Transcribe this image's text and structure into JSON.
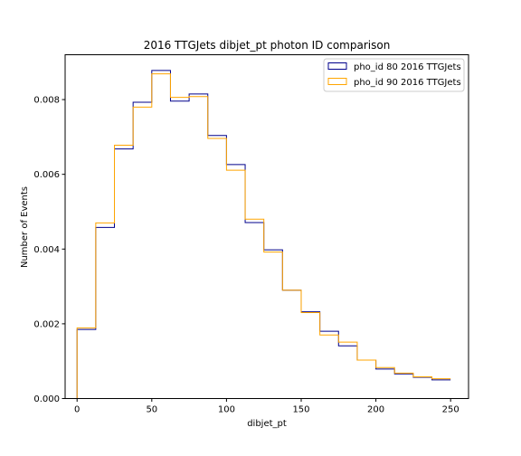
{
  "chart_data": {
    "type": "step-histogram",
    "title": "2016 TTGJets dibjet_pt photon ID comparison",
    "xlabel": "dibjet_pt",
    "ylabel": "Number of Events",
    "xlim": [
      -8,
      262
    ],
    "ylim": [
      0,
      0.0092
    ],
    "xticks": [
      0,
      50,
      100,
      150,
      200,
      250
    ],
    "yticks": [
      0.0,
      0.002,
      0.004,
      0.006,
      0.008
    ],
    "ytick_labels": [
      "0.000",
      "0.002",
      "0.004",
      "0.006",
      "0.008"
    ],
    "xtick_labels": [
      "0",
      "50",
      "100",
      "150",
      "200",
      "250"
    ],
    "legend_position": "top-right",
    "grid": false,
    "bin_edges": [
      0,
      12.5,
      25,
      37.5,
      50,
      62.5,
      75,
      87.5,
      100,
      112.5,
      125,
      137.5,
      150,
      162.5,
      175,
      187.5,
      200,
      212.5,
      225,
      237.5,
      250
    ],
    "series": [
      {
        "name": "pho_id 80 2016 TTGJets",
        "color": "#00008b",
        "values": [
          0.00185,
          0.00458,
          0.00668,
          0.00793,
          0.00878,
          0.00796,
          0.00815,
          0.00704,
          0.00626,
          0.00471,
          0.00398,
          0.0029,
          0.00232,
          0.0018,
          0.00141,
          0.00103,
          0.00079,
          0.00066,
          0.00057,
          0.0005
        ]
      },
      {
        "name": "pho_id 90 2016 TTGJets",
        "color": "#ffa500",
        "values": [
          0.00189,
          0.0047,
          0.00678,
          0.0078,
          0.00869,
          0.00806,
          0.00808,
          0.00696,
          0.00611,
          0.0048,
          0.00392,
          0.0029,
          0.0023,
          0.0017,
          0.00151,
          0.00103,
          0.00083,
          0.00068,
          0.00058,
          0.00053
        ]
      }
    ]
  }
}
